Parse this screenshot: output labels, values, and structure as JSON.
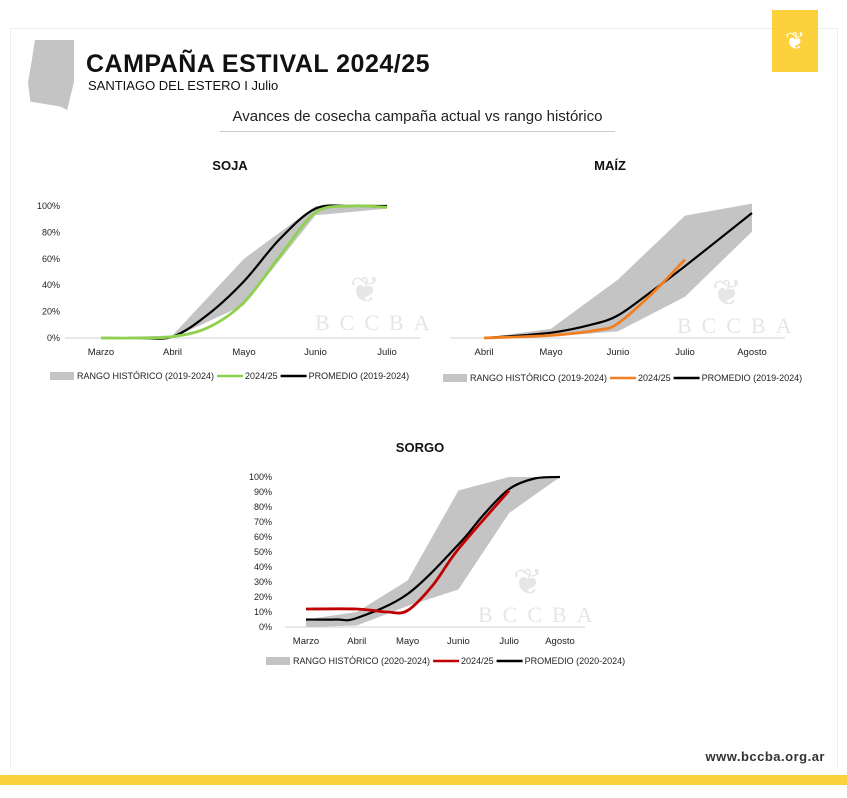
{
  "header": {
    "title": "CAMPAÑA ESTIVAL 2024/25",
    "subtitle": "SANTIAGO DEL ESTERO I Julio",
    "section": "Avances de cosecha campaña actual vs rango histórico",
    "watermark": "BCCBA"
  },
  "footer": {
    "url": "www.bccba.org.ar"
  },
  "chart_data": [
    {
      "type": "area+line",
      "title": "SOJA",
      "categories": [
        "Marzo",
        "Abril",
        "Mayo",
        "Junio",
        "Julio"
      ],
      "yticks": [
        "0%",
        "20%",
        "40%",
        "60%",
        "80%",
        "100%"
      ],
      "ylim": [
        0,
        100
      ],
      "legend": [
        "RANGO HISTÓRICO (2019-2024)",
        "2024/25",
        "PROMEDIO (2019-2024)"
      ],
      "colors": {
        "range": "#c4c4c4",
        "current": "#8fd14f",
        "avg": "#000000"
      },
      "range_upper": [
        [
          0,
          0
        ],
        [
          1,
          2
        ],
        [
          2,
          60
        ],
        [
          3,
          100
        ],
        [
          4,
          100
        ]
      ],
      "range_lower": [
        [
          0,
          0
        ],
        [
          1,
          0
        ],
        [
          2,
          25
        ],
        [
          3,
          93
        ],
        [
          4,
          98
        ]
      ],
      "current": [
        [
          0,
          0
        ],
        [
          0.5,
          0
        ],
        [
          1,
          1
        ],
        [
          1.5,
          8
        ],
        [
          2,
          27
        ],
        [
          2.5,
          62
        ],
        [
          3,
          95
        ],
        [
          3.5,
          100
        ],
        [
          4,
          99
        ]
      ],
      "avg": [
        [
          0,
          0
        ],
        [
          0.5,
          0
        ],
        [
          1,
          1
        ],
        [
          1.5,
          18
        ],
        [
          2,
          43
        ],
        [
          2.5,
          75
        ],
        [
          3,
          98
        ],
        [
          3.5,
          100
        ],
        [
          4,
          100
        ]
      ]
    },
    {
      "type": "area+line",
      "title": "MAÍZ",
      "categories": [
        "Abril",
        "Mayo",
        "Junio",
        "Julio",
        "Agosto"
      ],
      "yticks": [],
      "ylim": [
        0,
        100
      ],
      "legend": [
        "RANGO HISTÓRICO (2019-2024)",
        "2024/25",
        "PROMEDIO (2019-2024)"
      ],
      "colors": {
        "range": "#c4c4c4",
        "current": "#f07f22",
        "avg": "#000000"
      },
      "range_upper": [
        [
          0,
          0
        ],
        [
          1,
          7
        ],
        [
          2,
          44
        ],
        [
          3,
          92
        ],
        [
          4,
          101
        ]
      ],
      "range_lower": [
        [
          0,
          0
        ],
        [
          1,
          1
        ],
        [
          2,
          5
        ],
        [
          3,
          31
        ],
        [
          4,
          80
        ]
      ],
      "current": [
        [
          0,
          0
        ],
        [
          1,
          2
        ],
        [
          1.7,
          6
        ],
        [
          2,
          11
        ],
        [
          2.5,
          33
        ],
        [
          3,
          59
        ]
      ],
      "avg": [
        [
          0,
          0
        ],
        [
          1,
          4
        ],
        [
          1.6,
          10
        ],
        [
          2,
          17
        ],
        [
          2.5,
          35
        ],
        [
          3,
          54
        ],
        [
          4,
          94
        ]
      ]
    },
    {
      "type": "area+line",
      "title": "SORGO",
      "categories": [
        "Marzo",
        "Abril",
        "Mayo",
        "Junio",
        "Julio",
        "Agosto"
      ],
      "yticks": [
        "0%",
        "10%",
        "20%",
        "30%",
        "40%",
        "50%",
        "60%",
        "70%",
        "80%",
        "90%",
        "100%"
      ],
      "ylim": [
        0,
        100
      ],
      "legend": [
        "RANGO HISTÓRICO (2020-2024)",
        "2024/25",
        "PROMEDIO (2020-2024)"
      ],
      "colors": {
        "range": "#c4c4c4",
        "current": "#c00000",
        "avg": "#000000"
      },
      "range_upper": [
        [
          0,
          5
        ],
        [
          1,
          10
        ],
        [
          2,
          31
        ],
        [
          3,
          91
        ],
        [
          4,
          100
        ],
        [
          5,
          100
        ]
      ],
      "range_lower": [
        [
          0,
          0
        ],
        [
          1,
          1
        ],
        [
          2,
          14
        ],
        [
          3,
          25
        ],
        [
          4,
          76
        ],
        [
          5,
          100
        ]
      ],
      "current": [
        [
          0,
          12
        ],
        [
          1,
          12
        ],
        [
          1.6,
          10
        ],
        [
          2,
          11
        ],
        [
          2.5,
          28
        ],
        [
          3,
          52
        ],
        [
          4,
          91
        ]
      ],
      "avg": [
        [
          0,
          5
        ],
        [
          0.6,
          5
        ],
        [
          1,
          6
        ],
        [
          2,
          22
        ],
        [
          3,
          55
        ],
        [
          3.5,
          75
        ],
        [
          4,
          92
        ],
        [
          4.5,
          99
        ],
        [
          5,
          100
        ]
      ]
    }
  ]
}
